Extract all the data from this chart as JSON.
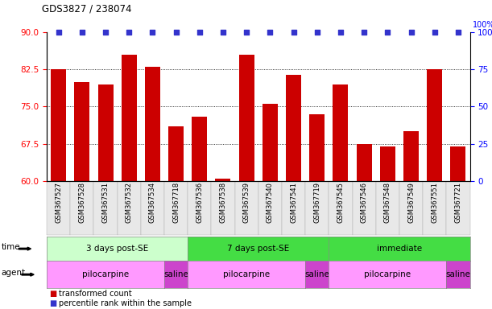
{
  "title": "GDS3827 / 238074",
  "samples": [
    "GSM367527",
    "GSM367528",
    "GSM367531",
    "GSM367532",
    "GSM367534",
    "GSM367718",
    "GSM367536",
    "GSM367538",
    "GSM367539",
    "GSM367540",
    "GSM367541",
    "GSM367719",
    "GSM367545",
    "GSM367546",
    "GSM367548",
    "GSM367549",
    "GSM367551",
    "GSM367721"
  ],
  "bar_values": [
    82.5,
    80.0,
    79.5,
    85.5,
    83.0,
    71.0,
    73.0,
    60.5,
    85.5,
    75.5,
    81.5,
    73.5,
    79.5,
    67.5,
    67.0,
    70.0,
    82.5,
    67.0
  ],
  "bar_color": "#cc0000",
  "percentile_color": "#3333cc",
  "ymin": 60,
  "ymax": 90,
  "yticks_left": [
    60,
    67.5,
    75,
    82.5,
    90
  ],
  "yticks_right": [
    0,
    25,
    50,
    75,
    100
  ],
  "grid_values": [
    67.5,
    75.0,
    82.5
  ],
  "time_group_defs": [
    {
      "label": "3 days post-SE",
      "start": 0,
      "end": 5,
      "color": "#ccffcc"
    },
    {
      "label": "7 days post-SE",
      "start": 6,
      "end": 11,
      "color": "#44dd44"
    },
    {
      "label": "immediate",
      "start": 12,
      "end": 17,
      "color": "#44dd44"
    }
  ],
  "agent_group_defs": [
    {
      "label": "pilocarpine",
      "start": 0,
      "end": 4,
      "color": "#ff99ff"
    },
    {
      "label": "saline",
      "start": 5,
      "end": 5,
      "color": "#cc44cc"
    },
    {
      "label": "pilocarpine",
      "start": 6,
      "end": 10,
      "color": "#ff99ff"
    },
    {
      "label": "saline",
      "start": 11,
      "end": 11,
      "color": "#cc44cc"
    },
    {
      "label": "pilocarpine",
      "start": 12,
      "end": 16,
      "color": "#ff99ff"
    },
    {
      "label": "saline",
      "start": 17,
      "end": 17,
      "color": "#cc44cc"
    }
  ],
  "legend_items": [
    {
      "label": "transformed count",
      "color": "#cc0000"
    },
    {
      "label": "percentile rank within the sample",
      "color": "#3333cc"
    }
  ],
  "bar_width": 0.65
}
